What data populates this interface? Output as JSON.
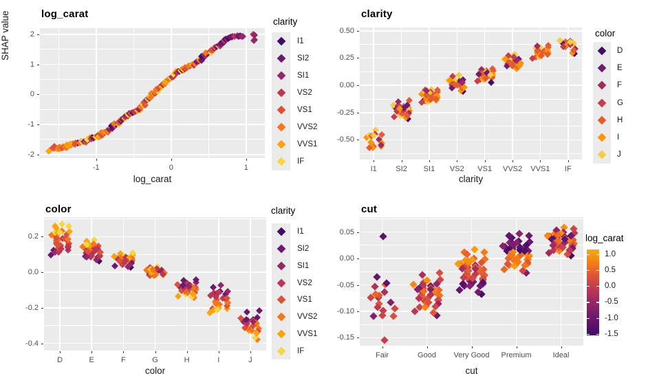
{
  "y_axis_label": "SHAP value",
  "style": {
    "background": "#FFFFFF",
    "panel_background": "#EBEBEB",
    "grid_color": "#FFFFFF",
    "tick_text_color": "#4D4D4D",
    "axis_title_color": "#1A1A1A",
    "title_color": "#000000"
  },
  "palettes": {
    "clarity": {
      "labels": [
        "I1",
        "SI2",
        "SI1",
        "VS2",
        "VS1",
        "VVS2",
        "VVS1",
        "IF"
      ],
      "colors": [
        "#440A68",
        "#6B186E",
        "#952667",
        "#BC3754",
        "#DD513A",
        "#F37819",
        "#FCA50A",
        "#F5D745"
      ]
    },
    "color": {
      "labels": [
        "D",
        "E",
        "F",
        "G",
        "H",
        "I",
        "J"
      ],
      "colors": [
        "#440A68",
        "#701A6D",
        "#9F2A63",
        "#C53C4E",
        "#E55C30",
        "#FA9407",
        "#F7CB44"
      ]
    },
    "inferno_anchors": [
      [
        0.0,
        "#440A68"
      ],
      [
        0.18,
        "#6B186E"
      ],
      [
        0.33,
        "#952667"
      ],
      [
        0.47,
        "#BC3754"
      ],
      [
        0.6,
        "#DD513A"
      ],
      [
        0.73,
        "#F37819"
      ],
      [
        0.87,
        "#FCA50A"
      ],
      [
        1.0,
        "#F5D745"
      ]
    ]
  },
  "legends": [
    {
      "title": "clarity",
      "type": "discrete",
      "palette": "clarity"
    },
    {
      "title": "color",
      "type": "discrete",
      "palette": "color"
    },
    {
      "title": "clarity",
      "type": "discrete",
      "palette": "clarity"
    },
    {
      "title": "log_carat",
      "type": "colorbar",
      "tick_labels": [
        "1.0",
        "0.5",
        "0.0",
        "-0.5",
        "-1.0",
        "-1.5"
      ],
      "tick_values": [
        1.0,
        0.5,
        0.0,
        -0.5,
        -1.0,
        -1.5
      ],
      "domain": [
        -1.55,
        1.15
      ]
    }
  ],
  "chart_data": [
    {
      "type": "scatter",
      "title": "log_carat",
      "xlabel": "log_carat",
      "ylabel": "SHAP value",
      "legend": 0,
      "color_by": "clarity",
      "xlim": [
        -1.75,
        1.25
      ],
      "ylim": [
        -2.12,
        2.2
      ],
      "x_tick_values": [
        -1,
        0,
        1
      ],
      "x_tick_labels": [
        "-1",
        "0",
        "1"
      ],
      "y_tick_values": [
        2,
        1,
        0,
        -1,
        -2
      ],
      "y_tick_labels": [
        "2",
        "1",
        "0",
        "-1",
        "-2"
      ],
      "points": [
        [
          -1.62,
          -1.86
        ],
        [
          -1.56,
          -1.8
        ],
        [
          -1.54,
          -1.77
        ],
        [
          -1.52,
          -1.8
        ],
        [
          -1.5,
          -1.78
        ],
        [
          -1.48,
          -1.75
        ],
        [
          -1.46,
          -1.77
        ],
        [
          -1.44,
          -1.74
        ],
        [
          -1.42,
          -1.76
        ],
        [
          -1.4,
          -1.73
        ],
        [
          -1.37,
          -1.7
        ],
        [
          -1.34,
          -1.68
        ],
        [
          -1.31,
          -1.65
        ],
        [
          -1.28,
          -1.66
        ],
        [
          -1.25,
          -1.61
        ],
        [
          -1.22,
          -1.62
        ],
        [
          -1.19,
          -1.57
        ],
        [
          -1.16,
          -1.58
        ],
        [
          -1.13,
          -1.53
        ],
        [
          -1.1,
          -1.5
        ],
        [
          -1.07,
          -1.47
        ],
        [
          -1.05,
          -1.44
        ],
        [
          -1.03,
          -1.46
        ],
        [
          -1.0,
          -1.41
        ],
        [
          -0.98,
          -1.38
        ],
        [
          -0.96,
          -1.4
        ],
        [
          -0.93,
          -1.32
        ],
        [
          -0.91,
          -1.34
        ],
        [
          -0.89,
          -1.27
        ],
        [
          -0.87,
          -1.24
        ],
        [
          -0.85,
          -1.21
        ],
        [
          -0.83,
          -1.18
        ],
        [
          -0.81,
          -1.14
        ],
        [
          -0.79,
          -1.11
        ],
        [
          -0.77,
          -1.08
        ],
        [
          -0.75,
          -1.04
        ],
        [
          -0.73,
          -1.0
        ],
        [
          -0.71,
          -0.96
        ],
        [
          -0.69,
          -0.92
        ],
        [
          -0.67,
          -0.88
        ],
        [
          -0.65,
          -0.83
        ],
        [
          -0.63,
          -0.78
        ],
        [
          -0.61,
          -0.74
        ],
        [
          -0.59,
          -0.71
        ],
        [
          -0.57,
          -0.68
        ],
        [
          -0.55,
          -0.65
        ],
        [
          -0.53,
          -0.62
        ],
        [
          -0.51,
          -0.6
        ],
        [
          -0.49,
          -0.58
        ],
        [
          -0.47,
          -0.55
        ],
        [
          -0.45,
          -0.53
        ],
        [
          -0.43,
          -0.5
        ],
        [
          -0.41,
          -0.46
        ],
        [
          -0.39,
          -0.4
        ],
        [
          -0.37,
          -0.33
        ],
        [
          -0.35,
          -0.26
        ],
        [
          -0.33,
          -0.2
        ],
        [
          -0.31,
          -0.16
        ],
        [
          -0.29,
          -0.12
        ],
        [
          -0.27,
          -0.07
        ],
        [
          -0.25,
          -0.02
        ],
        [
          -0.23,
          0.03
        ],
        [
          -0.21,
          0.08
        ],
        [
          -0.19,
          0.13
        ],
        [
          -0.17,
          0.18
        ],
        [
          -0.15,
          0.23
        ],
        [
          -0.13,
          0.28
        ],
        [
          -0.11,
          0.32
        ],
        [
          -0.09,
          0.36
        ],
        [
          -0.06,
          0.42
        ],
        [
          -0.03,
          0.5
        ],
        [
          -0.01,
          0.55
        ],
        [
          0.01,
          0.58
        ],
        [
          0.03,
          0.63
        ],
        [
          0.05,
          0.68
        ],
        [
          0.07,
          0.72
        ],
        [
          0.09,
          0.75
        ],
        [
          0.11,
          0.77
        ],
        [
          0.13,
          0.79
        ],
        [
          0.15,
          0.81
        ],
        [
          0.17,
          0.83
        ],
        [
          0.19,
          0.86
        ],
        [
          0.22,
          0.9
        ],
        [
          0.25,
          0.94
        ],
        [
          0.28,
          0.98
        ],
        [
          0.31,
          1.03
        ],
        [
          0.34,
          1.07
        ],
        [
          0.37,
          1.11
        ],
        [
          0.4,
          1.16
        ],
        [
          0.43,
          1.22
        ],
        [
          0.46,
          1.28
        ],
        [
          0.49,
          1.35
        ],
        [
          0.52,
          1.42
        ],
        [
          0.55,
          1.48
        ],
        [
          0.58,
          1.53
        ],
        [
          0.61,
          1.58
        ],
        [
          0.64,
          1.63
        ],
        [
          0.66,
          1.68
        ],
        [
          0.69,
          1.75
        ],
        [
          0.71,
          1.8
        ],
        [
          0.73,
          1.83
        ],
        [
          0.75,
          1.86
        ],
        [
          0.77,
          1.88
        ],
        [
          0.79,
          1.9
        ],
        [
          0.82,
          1.92
        ],
        [
          0.85,
          1.93
        ],
        [
          0.88,
          1.94
        ],
        [
          0.92,
          1.95
        ],
        [
          0.96,
          1.93
        ],
        [
          1.09,
          2.0
        ],
        [
          1.11,
          1.81
        ]
      ]
    },
    {
      "type": "jitter",
      "title": "clarity",
      "xlabel": "clarity",
      "ylabel": "SHAP value",
      "legend": 1,
      "color_by": "color",
      "categories": [
        "I1",
        "SI2",
        "SI1",
        "VS2",
        "VS1",
        "VVS2",
        "VVS1",
        "IF"
      ],
      "ylim": [
        -0.68,
        0.53
      ],
      "y_tick_values": [
        0.5,
        0.25,
        0,
        -0.25,
        -0.5
      ],
      "y_tick_labels": [
        "0.50",
        "0.25",
        "0.00",
        "-0.25",
        "-0.50"
      ],
      "clusters": [
        {
          "category": "I1",
          "min": -0.63,
          "max": -0.4,
          "center": -0.52,
          "n": 16,
          "trend": 0
        },
        {
          "category": "SI2",
          "min": -0.325,
          "max": -0.12,
          "center": -0.25,
          "n": 34,
          "trend": 0
        },
        {
          "category": "SI1",
          "min": -0.185,
          "max": -0.03,
          "center": -0.11,
          "n": 34,
          "trend": 0
        },
        {
          "category": "VS2",
          "min": -0.07,
          "max": 0.1,
          "center": 0.03,
          "n": 30,
          "trend": 0
        },
        {
          "category": "VS1",
          "min": 0.01,
          "max": 0.17,
          "center": 0.09,
          "n": 30,
          "trend": 0
        },
        {
          "category": "VVS2",
          "min": 0.13,
          "max": 0.29,
          "center": 0.21,
          "n": 28,
          "trend": 0
        },
        {
          "category": "VVS1",
          "min": 0.22,
          "max": 0.385,
          "center": 0.3,
          "n": 22,
          "trend": 0
        },
        {
          "category": "IF",
          "min": 0.27,
          "max": 0.48,
          "center": 0.36,
          "n": 15,
          "trend": 0
        }
      ]
    },
    {
      "type": "jitter",
      "title": "color",
      "xlabel": "color",
      "ylabel": "SHAP value",
      "legend": 2,
      "color_by": "clarity",
      "categories": [
        "D",
        "E",
        "F",
        "G",
        "H",
        "I",
        "J"
      ],
      "ylim": [
        -0.44,
        0.31
      ],
      "y_tick_values": [
        0.2,
        0,
        -0.2,
        -0.4
      ],
      "y_tick_labels": [
        "0.2",
        "0.0",
        "-0.2",
        "-0.4"
      ],
      "clusters": [
        {
          "category": "D",
          "min": 0.06,
          "max": 0.28,
          "center": 0.15,
          "n": 40,
          "trend": 1
        },
        {
          "category": "E",
          "min": 0.05,
          "max": 0.19,
          "center": 0.11,
          "n": 36,
          "trend": 1
        },
        {
          "category": "F",
          "min": 0.02,
          "max": 0.12,
          "center": 0.065,
          "n": 32,
          "trend": 1
        },
        {
          "category": "G",
          "min": -0.035,
          "max": 0.035,
          "center": 0.0,
          "n": 26,
          "trend": 0
        },
        {
          "category": "H",
          "min": -0.155,
          "max": -0.03,
          "center": -0.085,
          "n": 34,
          "trend": -1
        },
        {
          "category": "I",
          "min": -0.26,
          "max": -0.065,
          "center": -0.185,
          "n": 30,
          "trend": -1
        },
        {
          "category": "J",
          "min": -0.395,
          "max": -0.195,
          "center": -0.285,
          "n": 26,
          "trend": -1
        }
      ]
    },
    {
      "type": "jitter",
      "title": "cut",
      "xlabel": "cut",
      "ylabel": "SHAP value",
      "legend": 3,
      "color_by": "log_carat",
      "categories": [
        "Fair",
        "Good",
        "Very Good",
        "Premium",
        "Ideal"
      ],
      "ylim": [
        -0.165,
        0.078
      ],
      "y_tick_values": [
        0.05,
        0,
        -0.05,
        -0.1,
        -0.15
      ],
      "y_tick_labels": [
        "0.05",
        "0.00",
        "-0.05",
        "-0.10",
        "-0.15"
      ],
      "clusters": [
        {
          "category": "Fair",
          "min": -0.135,
          "max": -0.045,
          "center": -0.095,
          "n": 15,
          "bands": [
            [
              0,
              1.01,
              -0.3,
              0.9
            ]
          ],
          "extra": [
            [
              0.02,
              0.041,
              -1.2
            ],
            [
              0.05,
              -0.154,
              0.0
            ],
            [
              -0.12,
              -0.035,
              -1.1
            ],
            [
              0.1,
              -0.047,
              -1.2
            ]
          ]
        },
        {
          "category": "Good",
          "min": -0.116,
          "max": -0.018,
          "center": -0.065,
          "n": 42,
          "bands": [
            [
              0,
              1.01,
              -0.1,
              1.0
            ]
          ],
          "extra": []
        },
        {
          "category": "Very Good",
          "min": -0.076,
          "max": 0.021,
          "center": -0.028,
          "n": 58,
          "bands": [
            [
              0.65,
              1.01,
              0.55,
              0.5
            ],
            [
              0.35,
              0.65,
              0.0,
              0.6
            ],
            [
              0,
              0.35,
              -1.1,
              0.45
            ]
          ],
          "extra": []
        },
        {
          "category": "Premium",
          "min": -0.035,
          "max": 0.051,
          "center": 0.015,
          "n": 58,
          "bands": [
            [
              0.55,
              1.01,
              -1.15,
              0.5
            ],
            [
              0.15,
              0.55,
              0.55,
              0.5
            ],
            [
              0,
              0.15,
              -0.2,
              0.7
            ]
          ],
          "extra": []
        },
        {
          "category": "Ideal",
          "min": 0.0,
          "max": 0.062,
          "center": 0.033,
          "n": 50,
          "bands": [
            [
              0,
              1.01,
              -0.35,
              1.3
            ]
          ],
          "extra": []
        }
      ]
    }
  ]
}
